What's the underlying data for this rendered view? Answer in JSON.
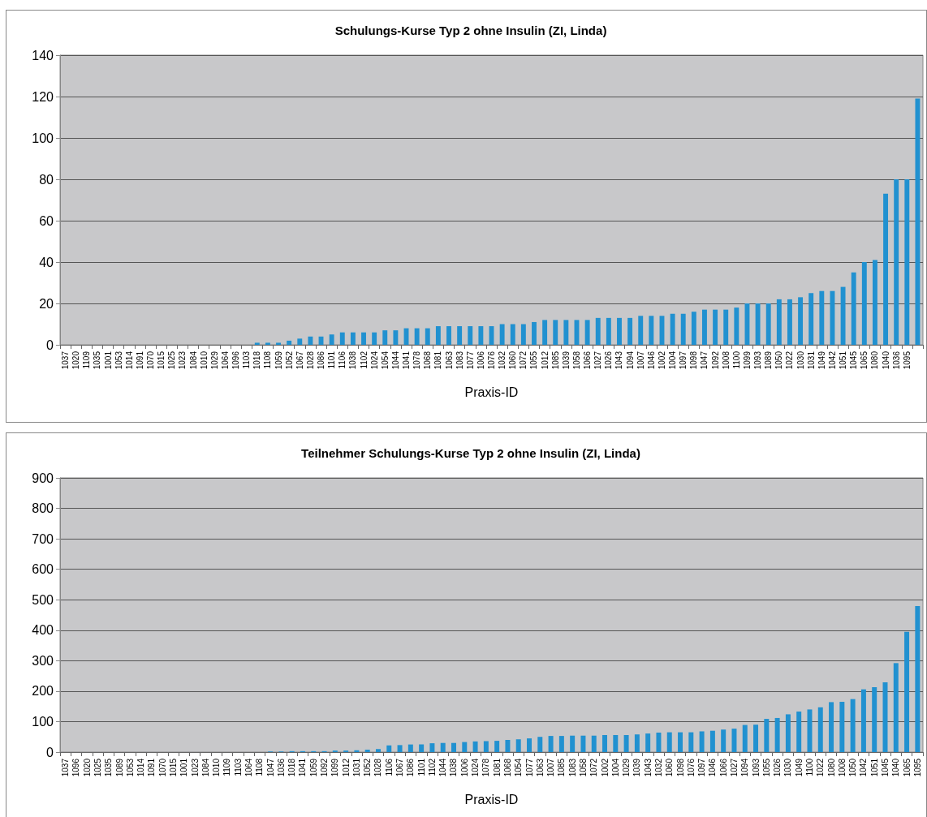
{
  "chart_data": [
    {
      "type": "bar",
      "title": "Schulungs-Kurse Typ 2 ohne Insulin (ZI, Linda)",
      "xlabel": "Praxis-ID",
      "color": "#2191d0",
      "grid": "y",
      "ylim": [
        0,
        140
      ],
      "yticks": [
        0,
        20,
        40,
        60,
        80,
        100,
        120,
        140
      ],
      "categories": [
        "1037",
        "1020",
        "1109",
        "1035",
        "1001",
        "1053",
        "1014",
        "1091",
        "1070",
        "1015",
        "1025",
        "1023",
        "1084",
        "1010",
        "1029",
        "1064",
        "1096",
        "1103",
        "1018",
        "1108",
        "1059",
        "1052",
        "1067",
        "1028",
        "1086",
        "1101",
        "1106",
        "1038",
        "1102",
        "1024",
        "1054",
        "1044",
        "1041",
        "1078",
        "1068",
        "1081",
        "1063",
        "1083",
        "1077",
        "1006",
        "1076",
        "1032",
        "1060",
        "1072",
        "1055",
        "1012",
        "1085",
        "1039",
        "1058",
        "1066",
        "1027",
        "1026",
        "1043",
        "1094",
        "1007",
        "1046",
        "1002",
        "1004",
        "1097",
        "1098",
        "1047",
        "1092",
        "1008",
        "1100",
        "1099",
        "1093",
        "1089",
        "1050",
        "1022",
        "1030",
        "1031",
        "1049",
        "1042",
        "1051",
        "1045",
        "1065",
        "1080",
        "1040",
        "1036",
        "1095",
        null
      ],
      "values": [
        0,
        0,
        0,
        0,
        0,
        0,
        0,
        0,
        0,
        0,
        0,
        0,
        0,
        0,
        0,
        0,
        0,
        0,
        1,
        1,
        1,
        2,
        3,
        4,
        4,
        5,
        6,
        6,
        6,
        6,
        7,
        7,
        8,
        8,
        8,
        9,
        9,
        9,
        9,
        9,
        9,
        10,
        10,
        10,
        11,
        12,
        12,
        12,
        12,
        12,
        13,
        13,
        13,
        13,
        14,
        14,
        14,
        15,
        15,
        16,
        17,
        17,
        17,
        18,
        20,
        20,
        20,
        22,
        22,
        23,
        25,
        26,
        26,
        28,
        35,
        40,
        41,
        73,
        80,
        80,
        119
      ]
    },
    {
      "type": "bar",
      "title": "Teilnehmer Schulungs-Kurse Typ 2 ohne Insulin (ZI, Linda)",
      "xlabel": "Praxis-ID",
      "color": "#2191d0",
      "grid": "y",
      "ylim": [
        0,
        900
      ],
      "yticks": [
        0,
        100,
        200,
        300,
        400,
        500,
        600,
        700,
        800,
        900
      ],
      "categories": [
        "1037",
        "1096",
        "1020",
        "1025",
        "1035",
        "1089",
        "1053",
        "1014",
        "1091",
        "1070",
        "1015",
        "1001",
        "1023",
        "1084",
        "1010",
        "1109",
        "1103",
        "1064",
        "1108",
        "1047",
        "1036",
        "1018",
        "1041",
        "1059",
        "1092",
        "1099",
        "1012",
        "1031",
        "1052",
        "1028",
        "1106",
        "1067",
        "1086",
        "1101",
        "1102",
        "1044",
        "1038",
        "1006",
        "1024",
        "1078",
        "1081",
        "1068",
        "1054",
        "1077",
        "1063",
        "1007",
        "1085",
        "1083",
        "1058",
        "1072",
        "1002",
        "1004",
        "1029",
        "1039",
        "1043",
        "1032",
        "1060",
        "1098",
        "1076",
        "1097",
        "1046",
        "1066",
        "1027",
        "1094",
        "1093",
        "1055",
        "1026",
        "1030",
        "1049",
        "1100",
        "1022",
        "1080",
        "1008",
        "1050",
        "1042",
        "1051",
        "1045",
        "1040",
        "1065",
        "1095"
      ],
      "values": [
        0,
        0,
        0,
        0,
        0,
        0,
        0,
        0,
        0,
        0,
        0,
        0,
        0,
        0,
        0,
        0,
        0,
        0,
        0,
        2,
        2,
        3,
        3,
        3,
        3,
        5,
        5,
        6,
        8,
        10,
        22,
        23,
        25,
        25,
        29,
        30,
        30,
        33,
        35,
        36,
        37,
        40,
        42,
        45,
        50,
        53,
        53,
        54,
        54,
        54,
        56,
        56,
        56,
        58,
        61,
        64,
        65,
        65,
        65,
        68,
        70,
        74,
        77,
        89,
        90,
        109,
        112,
        124,
        133,
        140,
        147,
        164,
        165,
        174,
        206,
        213,
        229,
        292,
        395,
        479
      ]
    }
  ]
}
